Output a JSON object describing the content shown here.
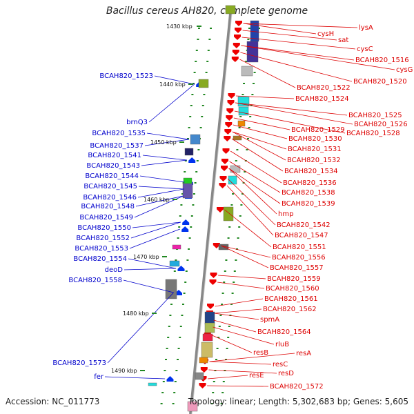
{
  "title": "Bacillus cereus AH820, complete genome",
  "footer": {
    "accession": "Accession: NC_011773",
    "summary": "Topology: linear; Length: 5,302,683 bp; Genes: 5,605"
  },
  "colors": {
    "left_labels": "#0000cc",
    "right_labels": "#dd0000",
    "backbone": "#888888",
    "tick": "#228822"
  },
  "kbp_marks": [
    "1430 kbp",
    "1440 kbp",
    "1450 kbp",
    "1460 kbp",
    "1470 kbp",
    "1480 kbp",
    "1490 kbp"
  ],
  "left_genes": [
    "BCAH820_1523",
    "brnQ3",
    "BCAH820_1535",
    "BCAH820_1537",
    "BCAH820_1541",
    "BCAH820_1543",
    "BCAH820_1544",
    "BCAH820_1545",
    "BCAH820_1546",
    "BCAH820_1548",
    "BCAH820_1549",
    "BCAH820_1550",
    "BCAH820_1552",
    "BCAH820_1553",
    "BCAH820_1554",
    "deoD",
    "BCAH820_1558",
    "BCAH820_1573",
    "fer"
  ],
  "right_genes": [
    "lysA",
    "cysH",
    "sat",
    "cysC",
    "BCAH820_1516",
    "cysG",
    "BCAH820_1520",
    "BCAH820_1522",
    "BCAH820_1524",
    "BCAH820_1525",
    "BCAH820_1526",
    "BCAH820_1528",
    "BCAH820_1529",
    "BCAH820_1530",
    "BCAH820_1531",
    "BCAH820_1532",
    "BCAH820_1534",
    "BCAH820_1536",
    "BCAH820_1538",
    "BCAH820_1539",
    "hmp",
    "BCAH820_1542",
    "BCAH820_1547",
    "BCAH820_1551",
    "BCAH820_1556",
    "BCAH820_1557",
    "BCAH820_1559",
    "BCAH820_1560",
    "BCAH820_1561",
    "BCAH820_1562",
    "spmA",
    "BCAH820_1564",
    "rluB",
    "resB",
    "resA",
    "resC",
    "resD",
    "resE",
    "BCAH820_1572"
  ]
}
